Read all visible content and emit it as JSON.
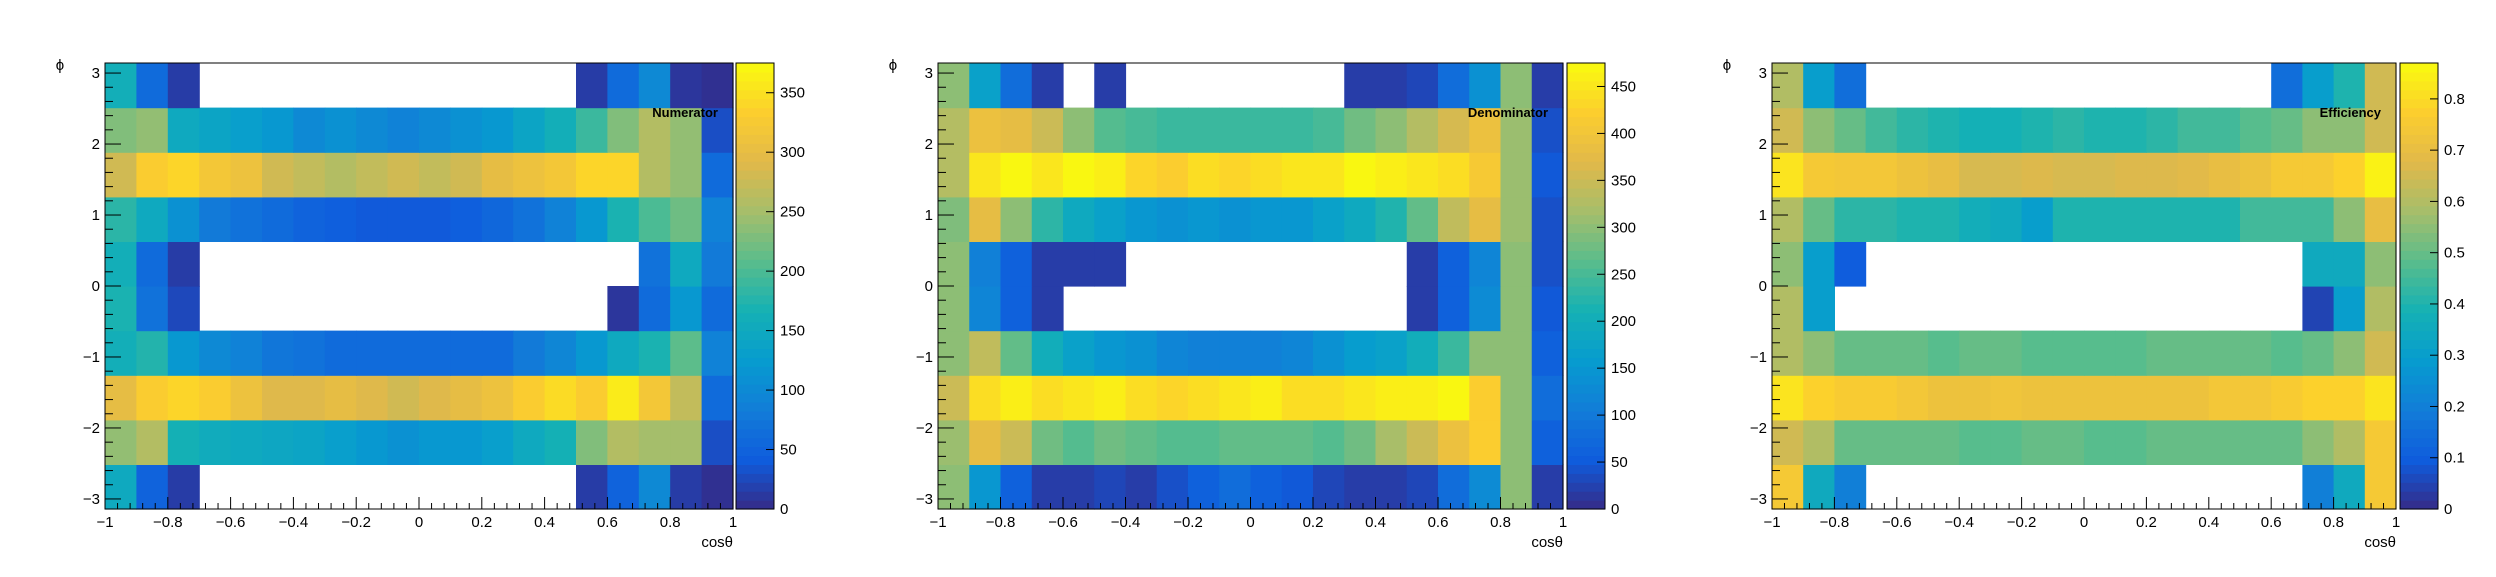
{
  "chart_data": [
    {
      "type": "heatmap",
      "title": "Numerator",
      "xlabel": "cosθ",
      "ylabel": "ϕ",
      "xlim": [
        -1,
        1
      ],
      "ylim": [
        -3.1416,
        3.1416
      ],
      "x_ticks": [
        -1,
        -0.8,
        -0.6,
        -0.4,
        -0.2,
        0,
        0.2,
        0.4,
        0.6,
        0.8,
        1
      ],
      "x_tick_labels": [
        "−1",
        "−0.8",
        "−0.6",
        "−0.4",
        "−0.2",
        "0",
        "0.2",
        "0.4",
        "0.6",
        "0.8",
        "1"
      ],
      "y_ticks": [
        -3,
        -2,
        -1,
        0,
        1,
        2,
        3
      ],
      "y_tick_labels": [
        "−3",
        "−2",
        "−1",
        "0",
        "1",
        "2",
        "3"
      ],
      "colorbar": {
        "min": 0,
        "max": 375,
        "ticks": [
          0,
          50,
          100,
          150,
          200,
          250,
          300,
          350
        ],
        "tick_labels": [
          "0",
          "50",
          "100",
          "150",
          "200",
          "250",
          "300",
          "350"
        ]
      },
      "nx": 20,
      "ny": 10,
      "values": [
        [
          150,
          50,
          15,
          0,
          0,
          0,
          0,
          0,
          0,
          0,
          0,
          0,
          0,
          0,
          0,
          15,
          50,
          100,
          15,
          5
        ],
        [
          240,
          260,
          165,
          155,
          150,
          145,
          140,
          130,
          120,
          110,
          120,
          120,
          130,
          150,
          165,
          230,
          260,
          250,
          250,
          30
        ],
        [
          300,
          330,
          340,
          330,
          310,
          290,
          290,
          300,
          290,
          280,
          290,
          300,
          310,
          330,
          345,
          330,
          360,
          320,
          270,
          60
        ],
        [
          160,
          175,
          120,
          100,
          90,
          75,
          70,
          60,
          60,
          60,
          60,
          60,
          60,
          80,
          95,
          120,
          150,
          170,
          210,
          90
        ],
        [
          170,
          70,
          25,
          0,
          0,
          0,
          0,
          0,
          0,
          0,
          0,
          0,
          0,
          0,
          0,
          0,
          10,
          60,
          120,
          60
        ],
        [
          160,
          60,
          15,
          0,
          0,
          0,
          0,
          0,
          0,
          0,
          0,
          0,
          0,
          0,
          0,
          0,
          0,
          70,
          150,
          80
        ],
        [
          180,
          150,
          110,
          80,
          70,
          60,
          50,
          45,
          40,
          40,
          40,
          45,
          55,
          70,
          90,
          120,
          170,
          200,
          220,
          90
        ],
        [
          280,
          330,
          340,
          320,
          310,
          280,
          270,
          260,
          270,
          280,
          270,
          280,
          300,
          310,
          320,
          340,
          340,
          260,
          240,
          60
        ],
        [
          230,
          240,
          150,
          140,
          130,
          120,
          100,
          110,
          100,
          90,
          100,
          110,
          120,
          140,
          160,
          190,
          230,
          260,
          240,
          30
        ],
        [
          160,
          60,
          15,
          0,
          0,
          0,
          0,
          0,
          0,
          0,
          0,
          0,
          0,
          0,
          0,
          15,
          60,
          100,
          10,
          5
        ]
      ]
    },
    {
      "type": "heatmap",
      "title": "Denominator",
      "xlabel": "cosθ",
      "ylabel": "ϕ",
      "xlim": [
        -1,
        1
      ],
      "ylim": [
        -3.1416,
        3.1416
      ],
      "x_ticks": [
        -1,
        -0.8,
        -0.6,
        -0.4,
        -0.2,
        0,
        0.2,
        0.4,
        0.6,
        0.8,
        1
      ],
      "x_tick_labels": [
        "−1",
        "−0.8",
        "−0.6",
        "−0.4",
        "−0.2",
        "0",
        "0.2",
        "0.4",
        "0.6",
        "0.8",
        "1"
      ],
      "y_ticks": [
        -3,
        -2,
        -1,
        0,
        1,
        2,
        3
      ],
      "y_tick_labels": [
        "−3",
        "−2",
        "−1",
        "0",
        "1",
        "2",
        "3"
      ],
      "colorbar": {
        "min": 0,
        "max": 475,
        "ticks": [
          0,
          50,
          100,
          150,
          200,
          250,
          300,
          350,
          400,
          450
        ],
        "tick_labels": [
          "0",
          "50",
          "100",
          "150",
          "200",
          "250",
          "300",
          "350",
          "400",
          "450"
        ]
      },
      "nx": 20,
      "ny": 10,
      "values": [
        [
          300,
          150,
          60,
          20,
          20,
          30,
          20,
          40,
          60,
          80,
          60,
          50,
          30,
          20,
          20,
          30,
          80,
          130,
          300,
          20
        ],
        [
          310,
          380,
          350,
          280,
          260,
          280,
          270,
          260,
          260,
          270,
          270,
          270,
          260,
          280,
          320,
          350,
          390,
          420,
          300,
          60
        ],
        [
          350,
          440,
          460,
          440,
          450,
          460,
          440,
          430,
          440,
          450,
          460,
          440,
          440,
          450,
          460,
          460,
          470,
          420,
          300,
          80
        ],
        [
          300,
          340,
          270,
          200,
          170,
          150,
          140,
          120,
          110,
          110,
          110,
          120,
          140,
          160,
          170,
          200,
          240,
          300,
          300,
          60
        ],
        [
          300,
          120,
          60,
          20,
          0,
          0,
          0,
          0,
          0,
          0,
          0,
          0,
          0,
          0,
          0,
          20,
          60,
          130,
          300,
          50
        ],
        [
          300,
          110,
          60,
          20,
          20,
          20,
          0,
          0,
          0,
          0,
          0,
          0,
          0,
          0,
          0,
          20,
          60,
          120,
          300,
          40
        ],
        [
          290,
          380,
          300,
          230,
          190,
          170,
          150,
          140,
          150,
          140,
          150,
          150,
          170,
          190,
          220,
          270,
          340,
          380,
          310,
          40
        ],
        [
          330,
          450,
          470,
          450,
          470,
          460,
          430,
          420,
          440,
          430,
          440,
          450,
          450,
          470,
          460,
          450,
          440,
          410,
          310,
          50
        ],
        [
          330,
          390,
          380,
          350,
          300,
          260,
          250,
          240,
          240,
          240,
          240,
          240,
          250,
          280,
          300,
          330,
          360,
          390,
          310,
          40
        ],
        [
          300,
          170,
          80,
          20,
          0,
          20,
          0,
          0,
          0,
          0,
          0,
          0,
          0,
          20,
          20,
          30,
          80,
          140,
          300,
          20
        ]
      ]
    },
    {
      "type": "heatmap",
      "title": "Efficiency",
      "xlabel": "cosθ",
      "ylabel": "ϕ",
      "xlim": [
        -1,
        1
      ],
      "ylim": [
        -3.1416,
        3.1416
      ],
      "x_ticks": [
        -1,
        -0.8,
        -0.6,
        -0.4,
        -0.2,
        0,
        0.2,
        0.4,
        0.6,
        0.8,
        1
      ],
      "x_tick_labels": [
        "−1",
        "−0.8",
        "−0.6",
        "−0.4",
        "−0.2",
        "0",
        "0.2",
        "0.4",
        "0.6",
        "0.8",
        "1"
      ],
      "y_ticks": [
        -3,
        -2,
        -1,
        0,
        1,
        2,
        3
      ],
      "y_tick_labels": [
        "−3",
        "−2",
        "−1",
        "0",
        "1",
        "2",
        "3"
      ],
      "colorbar": {
        "min": 0,
        "max": 0.87,
        "ticks": [
          0,
          0.1,
          0.2,
          0.3,
          0.4,
          0.5,
          0.6,
          0.7,
          0.8
        ],
        "tick_labels": [
          "0",
          "0.1",
          "0.2",
          "0.3",
          "0.4",
          "0.5",
          "0.6",
          "0.7",
          "0.8"
        ]
      },
      "nx": 20,
      "ny": 10,
      "values": [
        [
          0.75,
          0.35,
          0.2,
          0,
          0,
          0,
          0,
          0,
          0,
          0,
          0,
          0,
          0,
          0,
          0,
          0,
          0,
          0.2,
          0.35,
          0.75
        ],
        [
          0.65,
          0.6,
          0.5,
          0.5,
          0.5,
          0.5,
          0.48,
          0.48,
          0.5,
          0.5,
          0.48,
          0.48,
          0.5,
          0.5,
          0.5,
          0.5,
          0.5,
          0.55,
          0.6,
          0.75
        ],
        [
          0.82,
          0.78,
          0.76,
          0.76,
          0.74,
          0.72,
          0.72,
          0.73,
          0.72,
          0.72,
          0.72,
          0.72,
          0.72,
          0.72,
          0.74,
          0.74,
          0.76,
          0.78,
          0.78,
          0.82
        ],
        [
          0.6,
          0.55,
          0.5,
          0.5,
          0.5,
          0.48,
          0.5,
          0.5,
          0.48,
          0.48,
          0.48,
          0.48,
          0.5,
          0.5,
          0.5,
          0.5,
          0.48,
          0.5,
          0.55,
          0.65
        ],
        [
          0.6,
          0.3,
          0,
          0,
          0,
          0,
          0,
          0,
          0,
          0,
          0,
          0,
          0,
          0,
          0,
          0,
          0,
          0.05,
          0.3,
          0.6
        ],
        [
          0.55,
          0.3,
          0.1,
          0,
          0,
          0,
          0,
          0,
          0,
          0,
          0,
          0,
          0,
          0,
          0,
          0,
          0,
          0.35,
          0.35,
          0.55
        ],
        [
          0.6,
          0.5,
          0.42,
          0.42,
          0.4,
          0.4,
          0.37,
          0.35,
          0.3,
          0.4,
          0.4,
          0.4,
          0.4,
          0.4,
          0.4,
          0.45,
          0.45,
          0.45,
          0.55,
          0.7
        ],
        [
          0.82,
          0.75,
          0.74,
          0.74,
          0.72,
          0.7,
          0.66,
          0.66,
          0.67,
          0.66,
          0.66,
          0.67,
          0.67,
          0.68,
          0.7,
          0.72,
          0.75,
          0.75,
          0.78,
          0.85
        ],
        [
          0.65,
          0.55,
          0.5,
          0.45,
          0.42,
          0.4,
          0.38,
          0.38,
          0.4,
          0.42,
          0.4,
          0.4,
          0.42,
          0.45,
          0.45,
          0.48,
          0.5,
          0.55,
          0.55,
          0.65
        ],
        [
          0.6,
          0.3,
          0.15,
          0,
          0,
          0,
          0,
          0,
          0,
          0,
          0,
          0,
          0,
          0,
          0,
          0,
          0.15,
          0.3,
          0.4,
          0.65
        ]
      ]
    }
  ]
}
